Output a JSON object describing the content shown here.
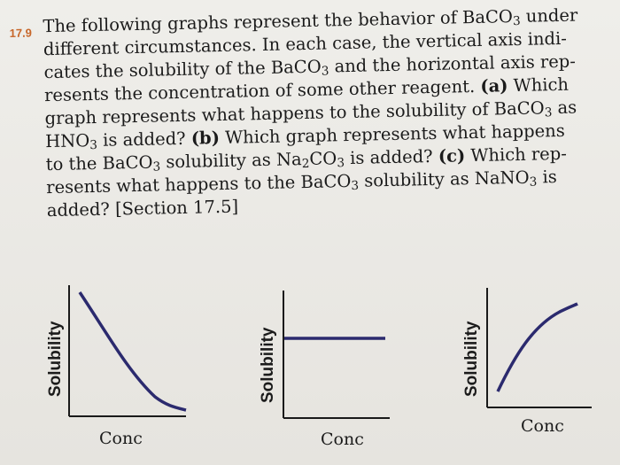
{
  "problem": {
    "number": "17.9",
    "lines": [
      "The following graphs represent the behavior of BaCO",
      "different circumstances. In each case, the vertical axis indi-",
      "cates the solubility of the BaCO",
      "resents the concentration of some other reagent.",
      "graph represents what happens to the solubility of BaCO",
      "HNO",
      "to the BaCO",
      "resents what happens to the BaCO",
      "added? [Section 17.5]"
    ],
    "l1_sub": "3",
    "l1_tail": " under",
    "l3_sub": "3",
    "l3_tail": " and the horizontal axis rep-",
    "l4_part_a": "(a)",
    "l4_tail": " Which",
    "l5_sub": "3",
    "l5_tail": " as",
    "l6_sub": "3",
    "l6_mid": " is added? ",
    "l6_part_b": "(b)",
    "l6_tail": " Which graph represents what happens",
    "l7_sub": "3",
    "l7_mid": " solubility as Na",
    "l7_sub2": "2",
    "l7_co": "CO",
    "l7_sub3": "3",
    "l7_mid2": " is added? ",
    "l7_part_c": "(c)",
    "l7_tail": " Which rep-",
    "l8_sub": "3",
    "l8_mid": " solubility as NaNO",
    "l8_sub2": "3",
    "l8_tail": " is"
  },
  "graphs": [
    {
      "ylabel": "Solubility",
      "xlabel": "Conc",
      "curve": "decreasing",
      "color": "#2b2a6e"
    },
    {
      "ylabel": "Solubility",
      "xlabel": "Conc",
      "curve": "constant",
      "color": "#2b2a6e"
    },
    {
      "ylabel": "Solubility",
      "xlabel": "Conc",
      "curve": "increasing",
      "color": "#2b2a6e"
    }
  ]
}
